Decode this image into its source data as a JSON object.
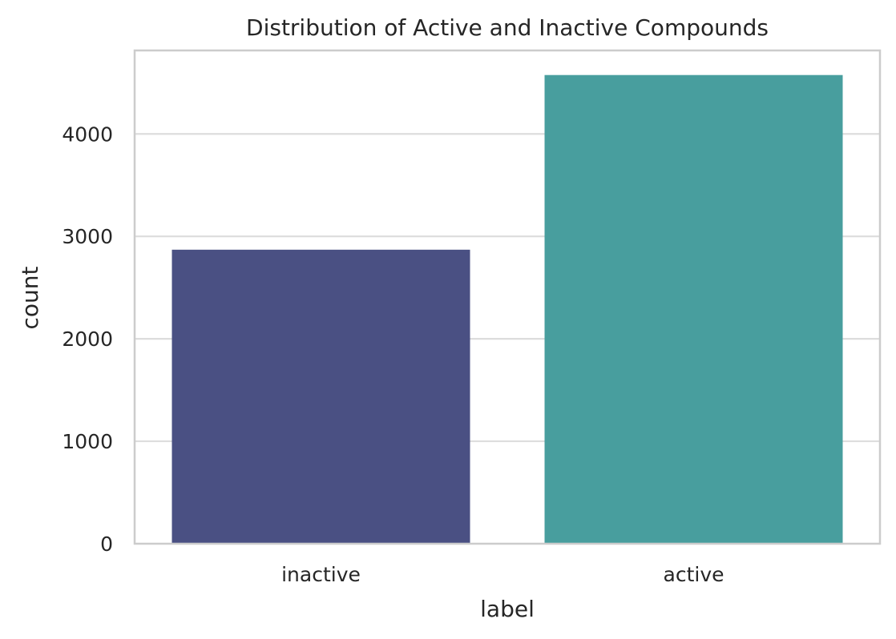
{
  "chart_data": {
    "type": "bar",
    "title": "Distribution of Active and Inactive Compounds",
    "xlabel": "label",
    "ylabel": "count",
    "categories": [
      "inactive",
      "active"
    ],
    "values": [
      2870,
      4575
    ],
    "colors": [
      "#4a5083",
      "#489e9e"
    ],
    "ylim": [
      0,
      4815
    ],
    "yticks": [
      0,
      1000,
      2000,
      3000,
      4000
    ],
    "ytick_labels": [
      "0",
      "1000",
      "2000",
      "3000",
      "4000"
    ],
    "grid": "y-major",
    "legend": "none"
  }
}
